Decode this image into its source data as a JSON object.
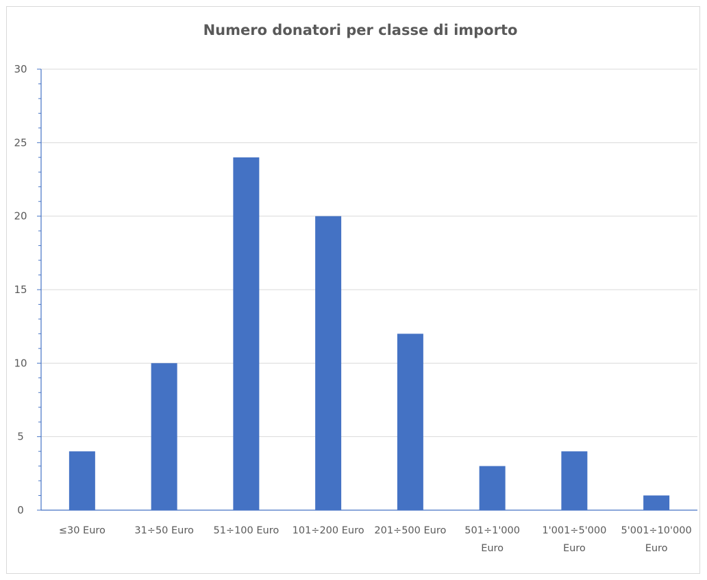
{
  "chart_data": {
    "type": "bar",
    "title": "Numero donatori per classe di importo",
    "xlabel": "",
    "ylabel": "",
    "categories": [
      [
        "≤30 Euro"
      ],
      [
        "31÷50 Euro"
      ],
      [
        "51÷100 Euro"
      ],
      [
        "101÷200 Euro"
      ],
      [
        "201÷500 Euro"
      ],
      [
        "501÷1'000",
        "Euro"
      ],
      [
        "1'001÷5'000",
        "Euro"
      ],
      [
        "5'001÷10'000",
        "Euro"
      ]
    ],
    "values": [
      4,
      10,
      24,
      20,
      12,
      3,
      4,
      1
    ],
    "ylim": [
      0,
      30
    ],
    "yticks": [
      0,
      5,
      10,
      15,
      20,
      25,
      30
    ],
    "grid": true,
    "legend": "none",
    "bar_color": "#4472C4",
    "axis_color": "#4472C4",
    "grid_color": "#d9d9d9"
  }
}
